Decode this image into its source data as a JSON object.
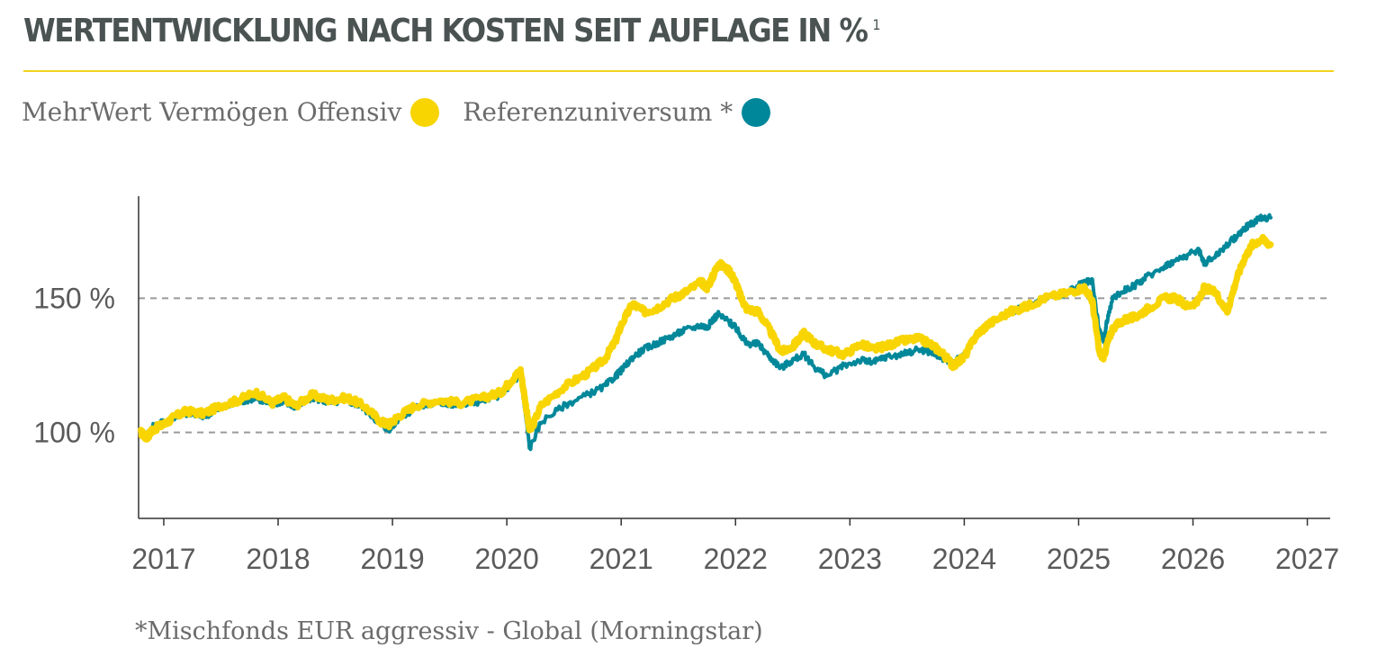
{
  "header": {
    "title": "WERTENTWICKLUNG NACH KOSTEN SEIT AUFLAGE IN %",
    "footnote_marker": "1"
  },
  "legend": {
    "items": [
      {
        "label": "MehrWert Vermögen Offensiv",
        "color": "#f8d500"
      },
      {
        "label": "Referenzuniversum *",
        "color": "#00889a"
      }
    ]
  },
  "footnote": "*Mischfonds EUR aggressiv - Global (Morningstar)",
  "chart_data": {
    "type": "line",
    "x_unit": "year",
    "xlim": [
      2016.78,
      2027.2
    ],
    "ylim": [
      68,
      188
    ],
    "x_ticks": [
      2017,
      2018,
      2019,
      2020,
      2021,
      2022,
      2023,
      2024,
      2025,
      2026,
      2027
    ],
    "x_tick_labels": [
      "2017",
      "2018",
      "2019",
      "2020",
      "2021",
      "2022",
      "2023",
      "2024",
      "2025",
      "2026",
      "2027"
    ],
    "y_ticks": [
      100,
      150
    ],
    "y_tick_labels": [
      "100 %",
      "150 %"
    ],
    "gridlines": "dashed at y ticks",
    "series": [
      {
        "name": "MehrWert Vermögen Offensiv",
        "color": "#f8d500",
        "x": [
          2016.8,
          2016.85,
          2016.9,
          2017.0,
          2017.1,
          2017.2,
          2017.35,
          2017.5,
          2017.65,
          2017.8,
          2017.95,
          2018.05,
          2018.15,
          2018.3,
          2018.45,
          2018.6,
          2018.75,
          2018.9,
          2018.97,
          2019.05,
          2019.2,
          2019.4,
          2019.6,
          2019.8,
          2019.95,
          2020.05,
          2020.12,
          2020.16,
          2020.2,
          2020.3,
          2020.5,
          2020.7,
          2020.85,
          2020.95,
          2021.0,
          2021.1,
          2021.2,
          2021.3,
          2021.45,
          2021.55,
          2021.7,
          2021.75,
          2021.8,
          2021.85,
          2021.95,
          2022.0,
          2022.05,
          2022.1,
          2022.2,
          2022.3,
          2022.4,
          2022.5,
          2022.6,
          2022.7,
          2022.8,
          2022.95,
          2023.1,
          2023.2,
          2023.3,
          2023.45,
          2023.6,
          2023.7,
          2023.8,
          2023.9,
          2024.0,
          2024.1,
          2024.2,
          2024.4,
          2024.55,
          2024.7,
          2024.9,
          2025.05,
          2025.12,
          2025.18,
          2025.22,
          2025.25,
          2025.3,
          2025.4,
          2025.5,
          2025.6,
          2025.75,
          2025.85,
          2025.95,
          2026.05,
          2026.1,
          2026.2,
          2026.3,
          2026.38,
          2026.45,
          2026.52,
          2026.6,
          2026.68
        ],
        "y": [
          100,
          98,
          101,
          103,
          106,
          108,
          107,
          110,
          112,
          115,
          111,
          113,
          110,
          114,
          112,
          113,
          110,
          104,
          103,
          106,
          110,
          112,
          111,
          113,
          115,
          120,
          123,
          112,
          100,
          110,
          117,
          122,
          127,
          134,
          140,
          148,
          145,
          146,
          150,
          152,
          156,
          154,
          158,
          163,
          160,
          156,
          150,
          146,
          145,
          138,
          130,
          132,
          137,
          133,
          131,
          129,
          133,
          131,
          132,
          134,
          135,
          133,
          130,
          125,
          128,
          136,
          140,
          145,
          147,
          150,
          152,
          154,
          149,
          130,
          128,
          133,
          139,
          142,
          143,
          146,
          150,
          150,
          147,
          149,
          154,
          152,
          145,
          157,
          165,
          170,
          172,
          170
        ],
        "end_value": 170
      },
      {
        "name": "Referenzuniversum *",
        "color": "#00889a",
        "x": [
          2016.8,
          2016.85,
          2016.9,
          2017.0,
          2017.1,
          2017.2,
          2017.35,
          2017.5,
          2017.65,
          2017.8,
          2017.95,
          2018.05,
          2018.15,
          2018.3,
          2018.45,
          2018.6,
          2018.75,
          2018.9,
          2018.97,
          2019.05,
          2019.2,
          2019.4,
          2019.6,
          2019.8,
          2019.95,
          2020.05,
          2020.12,
          2020.16,
          2020.2,
          2020.3,
          2020.5,
          2020.7,
          2020.85,
          2020.95,
          2021.0,
          2021.1,
          2021.2,
          2021.3,
          2021.45,
          2021.55,
          2021.7,
          2021.75,
          2021.8,
          2021.85,
          2021.95,
          2022.0,
          2022.05,
          2022.1,
          2022.2,
          2022.3,
          2022.4,
          2022.5,
          2022.6,
          2022.7,
          2022.8,
          2022.95,
          2023.1,
          2023.2,
          2023.3,
          2023.45,
          2023.6,
          2023.7,
          2023.8,
          2023.9,
          2024.0,
          2024.1,
          2024.2,
          2024.4,
          2024.55,
          2024.7,
          2024.9,
          2025.05,
          2025.12,
          2025.18,
          2025.22,
          2025.25,
          2025.3,
          2025.4,
          2025.5,
          2025.6,
          2025.75,
          2025.85,
          2025.95,
          2026.05,
          2026.1,
          2026.2,
          2026.3,
          2026.38,
          2026.45,
          2026.52,
          2026.6,
          2026.68
        ],
        "y": [
          100,
          99,
          102,
          104,
          106,
          107,
          106,
          109,
          111,
          113,
          110,
          112,
          109,
          113,
          111,
          112,
          109,
          103,
          101,
          105,
          109,
          111,
          110,
          112,
          114,
          119,
          121,
          108,
          94,
          104,
          110,
          114,
          117,
          121,
          123,
          128,
          131,
          133,
          136,
          138,
          140,
          139,
          142,
          144,
          141,
          139,
          136,
          133,
          133,
          128,
          124,
          127,
          129,
          124,
          121,
          125,
          127,
          126,
          128,
          129,
          131,
          130,
          128,
          126,
          129,
          136,
          140,
          145,
          147,
          150,
          152,
          156,
          156,
          138,
          134,
          142,
          150,
          153,
          155,
          158,
          162,
          164,
          166,
          168,
          163,
          166,
          170,
          173,
          176,
          178,
          180,
          180
        ],
        "end_value": 180
      }
    ]
  }
}
